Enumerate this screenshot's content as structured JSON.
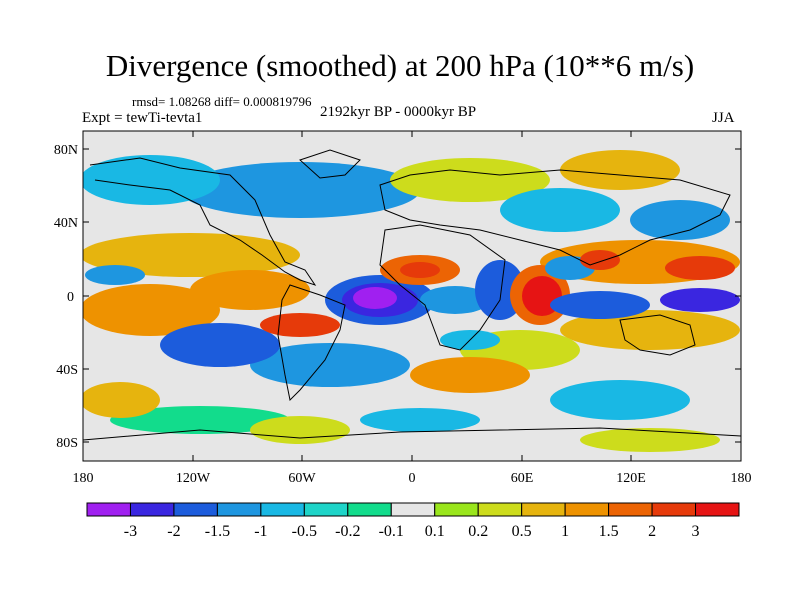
{
  "title": "Divergence (smoothed) at 200 hPa (10**6 m/s)",
  "stats_line": "rmsd= 1.08268 diff= 0.000819796",
  "experiment": "Expt = tewTi-tevta1",
  "period": "2192kyr BP - 0000kyr BP",
  "season": "JJA",
  "lat_labels": [
    "80N",
    "40N",
    "0",
    "40S",
    "80S"
  ],
  "lon_labels": [
    "180",
    "120W",
    "60W",
    "0",
    "60E",
    "120E",
    "180"
  ],
  "colorbar": {
    "labels": [
      "-3",
      "-2",
      "-1.5",
      "-1",
      "-0.5",
      "-0.2",
      "-0.1",
      "0.1",
      "0.2",
      "0.5",
      "1",
      "1.5",
      "2",
      "3"
    ],
    "colors": [
      "#a020f0",
      "#3a26e0",
      "#1c5cdc",
      "#1e96e0",
      "#19b8e4",
      "#1ed4c8",
      "#12dc8c",
      "#e6e6e6",
      "#9ae61c",
      "#cddc1c",
      "#e6b40e",
      "#ee9200",
      "#ec6404",
      "#e63a0a",
      "#e61414"
    ]
  }
}
